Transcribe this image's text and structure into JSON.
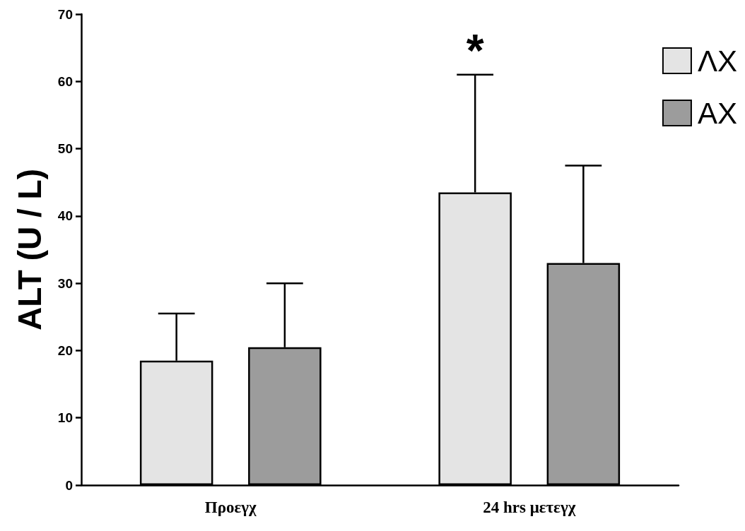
{
  "chart_data": {
    "type": "bar",
    "categories": [
      "Προεγχ",
      "24 hrs μετεγχ"
    ],
    "ylabel": "ALT (U / L)",
    "ylim": [
      0,
      70
    ],
    "yticks": [
      0,
      10,
      20,
      30,
      40,
      50,
      60,
      70
    ],
    "series": [
      {
        "name": "ΛX",
        "color": "#e4e4e4",
        "values": [
          18.5,
          43.5
        ],
        "errors": [
          [
            18.5,
            25.5
          ],
          [
            43.5,
            61
          ]
        ]
      },
      {
        "name": "AX",
        "color": "#9c9c9c",
        "values": [
          20.5,
          33
        ],
        "errors": [
          [
            20.5,
            30
          ],
          [
            33,
            47.5
          ]
        ]
      }
    ],
    "annotations": [
      {
        "text": "*",
        "y": 61
      }
    ],
    "legend": "top right"
  }
}
